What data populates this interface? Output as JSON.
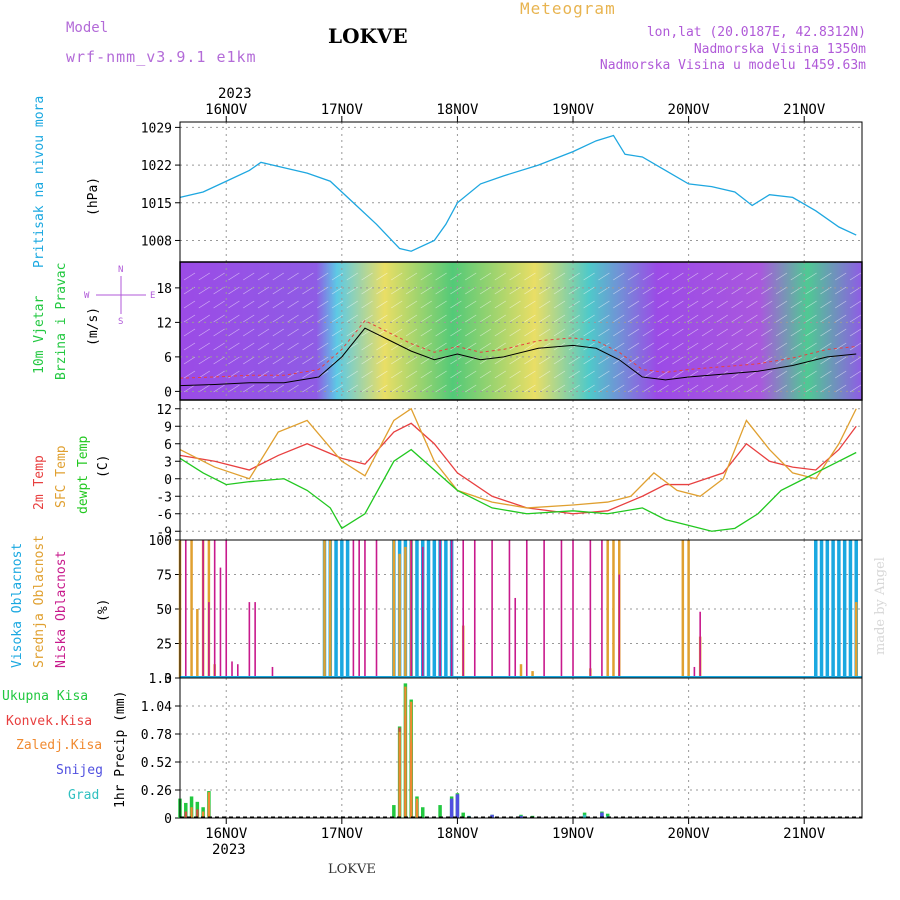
{
  "header": {
    "model_label": "Model",
    "model_name": "wrf-nmm_v3.9.1 e1km",
    "title": "LOKVE",
    "meteogram_label": "Meteogram",
    "coords": "lon,lat (20.0187E, 42.8312N)",
    "elevation": "Nadmorska Visina 1350m",
    "model_elevation": "Nadmorska Visina u modelu 1459.63m"
  },
  "footer": {
    "station": "LOKVE",
    "credit": "made by Angel"
  },
  "axes": {
    "year": "2023",
    "dates": [
      "16NOV",
      "17NOV",
      "18NOV",
      "19NOV",
      "20NOV",
      "21NOV"
    ]
  },
  "colors": {
    "pressure": "#1ea7e0",
    "temp2m": "#e84040",
    "sfc": "#e0a030",
    "dewpt": "#22c820",
    "high_cloud": "#1aa8e0",
    "mid_cloud": "#e0a030",
    "low_cloud": "#c81a8c",
    "total_precip": "#22c840",
    "conv_precip": "#e84040",
    "frozen_precip": "#f08a30",
    "snow": "#5050e0",
    "graupel": "#30c0c0"
  },
  "panel_labels": {
    "pressure": [
      "Pritisak na nivou mora",
      "(hPa)"
    ],
    "wind": [
      "10m Vjetar",
      "Brzina i Pravac",
      "(m/s)"
    ],
    "compass": {
      "n": "N",
      "e": "E",
      "w": "W",
      "s": "S"
    },
    "temp": [
      "2m Temp",
      "SFC Temp",
      "dewpt Temp",
      "(C)"
    ],
    "cloud": [
      "Visoka Oblacnost",
      "Srednja Oblacnost",
      "Niska Oblacnost",
      "(%)"
    ],
    "precip": [
      "1hr Precip (mm)"
    ],
    "precip_legend": [
      "Ukupna Kisa",
      "Konvek.Kisa",
      "Zaledj.Kisa",
      "Snijeg",
      "Grad"
    ]
  },
  "chart_data": [
    {
      "type": "line",
      "name": "pressure",
      "ylabel": "(hPa)",
      "ylim": [
        1004,
        1030
      ],
      "yticks": [
        "1029",
        "1022",
        "1015",
        "1008"
      ],
      "x_day_start": 15.6,
      "x_day_end": 21.5,
      "series": [
        {
          "name": "Pritisak na nivou mora",
          "x": [
            15.6,
            15.8,
            16.0,
            16.2,
            16.3,
            16.5,
            16.7,
            16.9,
            17.1,
            17.3,
            17.5,
            17.6,
            17.8,
            17.9,
            18.0,
            18.2,
            18.4,
            18.7,
            19.0,
            19.2,
            19.35,
            19.45,
            19.6,
            19.8,
            20.0,
            20.2,
            20.4,
            20.55,
            20.7,
            20.9,
            21.1,
            21.3,
            21.45
          ],
          "values": [
            1016,
            1017,
            1019,
            1021,
            1022.5,
            1021.5,
            1020.5,
            1019,
            1015,
            1011,
            1006.5,
            1006,
            1008,
            1011,
            1015,
            1018.5,
            1020,
            1022,
            1024.5,
            1026.5,
            1027.5,
            1024,
            1023.5,
            1021,
            1018.5,
            1018,
            1017,
            1014.5,
            1016.5,
            1016,
            1013.5,
            1010.5,
            1009
          ]
        }
      ]
    },
    {
      "type": "line",
      "name": "wind",
      "ylabel": "(m/s)",
      "ylim": [
        -1.5,
        22.5
      ],
      "yticks": [
        "18",
        "12",
        "6",
        "0"
      ],
      "series": [
        {
          "name": "wind speed",
          "x": [
            15.6,
            15.9,
            16.2,
            16.5,
            16.8,
            17.0,
            17.2,
            17.4,
            17.6,
            17.8,
            18.0,
            18.2,
            18.4,
            18.7,
            19.0,
            19.2,
            19.4,
            19.6,
            19.8,
            20.0,
            20.3,
            20.6,
            20.9,
            21.2,
            21.45
          ],
          "values": [
            1,
            1.2,
            1.5,
            1.5,
            2.5,
            6,
            11,
            9,
            7,
            5.5,
            6.5,
            5.5,
            6,
            7.5,
            8,
            7.5,
            5.5,
            2.5,
            2,
            2.5,
            3,
            3.5,
            4.5,
            6,
            6.5
          ]
        }
      ]
    },
    {
      "type": "line",
      "name": "temperature",
      "ylabel": "(C)",
      "ylim": [
        -10.5,
        13.5
      ],
      "yticks": [
        "12",
        "9",
        "6",
        "3",
        "0",
        "-3",
        "-6",
        "-9"
      ],
      "series": [
        {
          "name": "2m Temp",
          "x": [
            15.6,
            15.9,
            16.2,
            16.45,
            16.7,
            17.0,
            17.2,
            17.45,
            17.6,
            17.8,
            18.0,
            18.3,
            18.6,
            19.0,
            19.3,
            19.6,
            19.8,
            20.0,
            20.3,
            20.5,
            20.7,
            20.9,
            21.1,
            21.3,
            21.45
          ],
          "values": [
            4,
            3,
            1.5,
            4,
            6,
            3.5,
            2.5,
            8,
            9.5,
            6,
            1,
            -3,
            -5,
            -6,
            -5.5,
            -3,
            -1,
            -1,
            1,
            6,
            3,
            2,
            1.5,
            5,
            9
          ]
        },
        {
          "name": "SFC Temp",
          "x": [
            15.6,
            15.9,
            16.2,
            16.45,
            16.7,
            17.0,
            17.2,
            17.45,
            17.6,
            17.8,
            18.0,
            18.3,
            18.6,
            19.0,
            19.3,
            19.5,
            19.7,
            19.9,
            20.1,
            20.3,
            20.5,
            20.7,
            20.9,
            21.1,
            21.3,
            21.45
          ],
          "values": [
            5,
            2,
            0,
            8,
            10,
            3,
            0.5,
            10,
            12,
            3,
            -2,
            -4,
            -5,
            -4.5,
            -4,
            -3,
            1,
            -2,
            -3,
            0,
            10,
            5,
            1,
            0,
            6,
            12
          ]
        },
        {
          "name": "dewpt Temp",
          "x": [
            15.6,
            15.8,
            16.0,
            16.2,
            16.5,
            16.7,
            16.9,
            17.0,
            17.2,
            17.45,
            17.6,
            17.8,
            18.0,
            18.3,
            18.6,
            19.0,
            19.3,
            19.6,
            19.8,
            20.0,
            20.2,
            20.4,
            20.6,
            20.8,
            21.0,
            21.2,
            21.45
          ],
          "values": [
            3.5,
            1,
            -1,
            -0.5,
            0,
            -2,
            -5,
            -8.5,
            -6,
            3,
            5,
            1.5,
            -2,
            -5,
            -6,
            -5.5,
            -6,
            -5,
            -7,
            -8,
            -9,
            -8.5,
            -6,
            -2,
            0,
            2,
            4.5
          ]
        }
      ]
    },
    {
      "type": "bar",
      "name": "cloud cover",
      "ylabel": "(%)",
      "ylim": [
        0,
        100
      ],
      "yticks": [
        "100",
        "75",
        "50",
        "25",
        "0"
      ],
      "series": [
        {
          "name": "Visoka Oblacnost",
          "bars": [
            [
              16.85,
              100
            ],
            [
              16.9,
              100
            ],
            [
              16.95,
              100
            ],
            [
              17.0,
              100
            ],
            [
              17.05,
              100
            ],
            [
              17.45,
              100
            ],
            [
              17.5,
              100
            ],
            [
              17.55,
              100
            ],
            [
              17.6,
              100
            ],
            [
              17.65,
              100
            ],
            [
              17.7,
              100
            ],
            [
              17.75,
              100
            ],
            [
              17.8,
              100
            ],
            [
              17.85,
              100
            ],
            [
              17.9,
              100
            ],
            [
              17.95,
              100
            ],
            [
              21.1,
              100
            ],
            [
              21.15,
              100
            ],
            [
              21.2,
              100
            ],
            [
              21.25,
              100
            ],
            [
              21.3,
              100
            ],
            [
              21.35,
              100
            ],
            [
              21.4,
              100
            ],
            [
              21.45,
              100
            ]
          ]
        },
        {
          "name": "Srednja Oblacnost",
          "bars": [
            [
              15.6,
              100
            ],
            [
              15.7,
              100
            ],
            [
              15.75,
              50
            ],
            [
              15.8,
              100
            ],
            [
              15.85,
              100
            ],
            [
              15.9,
              10
            ],
            [
              16.85,
              100
            ],
            [
              16.9,
              100
            ],
            [
              17.45,
              100
            ],
            [
              17.5,
              90
            ],
            [
              17.55,
              95
            ],
            [
              17.6,
              100
            ],
            [
              18.05,
              38
            ],
            [
              18.55,
              10
            ],
            [
              18.65,
              5
            ],
            [
              19.15,
              7
            ],
            [
              19.3,
              100
            ],
            [
              19.35,
              100
            ],
            [
              19.4,
              100
            ],
            [
              19.95,
              100
            ],
            [
              20.0,
              100
            ],
            [
              20.1,
              30
            ],
            [
              21.45,
              55
            ]
          ]
        },
        {
          "name": "Niska Oblacnost",
          "bars": [
            [
              15.65,
              100
            ],
            [
              15.8,
              100
            ],
            [
              15.85,
              55
            ],
            [
              15.9,
              100
            ],
            [
              15.95,
              80
            ],
            [
              16.0,
              100
            ],
            [
              16.05,
              12
            ],
            [
              16.1,
              10
            ],
            [
              16.2,
              55
            ],
            [
              16.25,
              55
            ],
            [
              16.4,
              8
            ],
            [
              17.1,
              100
            ],
            [
              17.15,
              100
            ],
            [
              17.2,
              100
            ],
            [
              17.3,
              100
            ],
            [
              17.6,
              100
            ],
            [
              17.7,
              95
            ],
            [
              17.85,
              100
            ],
            [
              17.95,
              100
            ],
            [
              18.05,
              100
            ],
            [
              18.15,
              100
            ],
            [
              18.3,
              100
            ],
            [
              18.45,
              100
            ],
            [
              18.5,
              58
            ],
            [
              18.6,
              100
            ],
            [
              18.75,
              100
            ],
            [
              18.9,
              100
            ],
            [
              19.0,
              100
            ],
            [
              19.15,
              100
            ],
            [
              19.25,
              100
            ],
            [
              19.4,
              75
            ],
            [
              20.05,
              8
            ],
            [
              20.1,
              48
            ]
          ]
        }
      ]
    },
    {
      "type": "bar",
      "name": "precipitation",
      "ylabel": "1hr Precip (mm)",
      "ylim": [
        0,
        1.3
      ],
      "yticks": [
        "1.3",
        "1.04",
        "0.78",
        "0.52",
        "0.26",
        "0"
      ],
      "series": [
        {
          "name": "Ukupna Kisa",
          "bars": [
            [
              15.6,
              0.18
            ],
            [
              15.65,
              0.14
            ],
            [
              15.7,
              0.2
            ],
            [
              15.75,
              0.15
            ],
            [
              15.8,
              0.1
            ],
            [
              15.85,
              0.25
            ],
            [
              17.45,
              0.12
            ],
            [
              17.5,
              0.85
            ],
            [
              17.55,
              1.25
            ],
            [
              17.6,
              1.1
            ],
            [
              17.65,
              0.2
            ],
            [
              17.7,
              0.1
            ],
            [
              17.85,
              0.12
            ],
            [
              17.95,
              0.2
            ],
            [
              18.0,
              0.23
            ],
            [
              18.05,
              0.05
            ],
            [
              18.3,
              0.03
            ],
            [
              18.55,
              0.03
            ],
            [
              18.65,
              0.02
            ],
            [
              19.1,
              0.05
            ],
            [
              19.25,
              0.06
            ],
            [
              19.3,
              0.04
            ]
          ]
        },
        {
          "name": "Konvek.Kisa",
          "bars": [
            [
              15.65,
              0.06
            ],
            [
              15.75,
              0.08
            ],
            [
              15.85,
              0.12
            ],
            [
              17.5,
              0.84
            ],
            [
              17.55,
              0.95
            ],
            [
              17.6,
              0.7
            ],
            [
              17.65,
              0.15
            ]
          ]
        },
        {
          "name": "Zaledj.Kisa",
          "bars": [
            [
              15.7,
              0.1
            ],
            [
              15.8,
              0.06
            ],
            [
              15.85,
              0.24
            ],
            [
              17.5,
              0.8
            ],
            [
              17.55,
              1.22
            ],
            [
              17.6,
              1.08
            ],
            [
              17.65,
              0.18
            ]
          ]
        },
        {
          "name": "Snijeg",
          "bars": [
            [
              17.95,
              0.18
            ],
            [
              18.0,
              0.22
            ],
            [
              18.3,
              0.03
            ],
            [
              18.55,
              0.02
            ],
            [
              19.25,
              0.05
            ]
          ]
        },
        {
          "name": "Grad",
          "bars": [
            [
              18.1,
              0.02
            ],
            [
              19.1,
              0.03
            ],
            [
              19.3,
              0.02
            ]
          ]
        }
      ]
    }
  ]
}
